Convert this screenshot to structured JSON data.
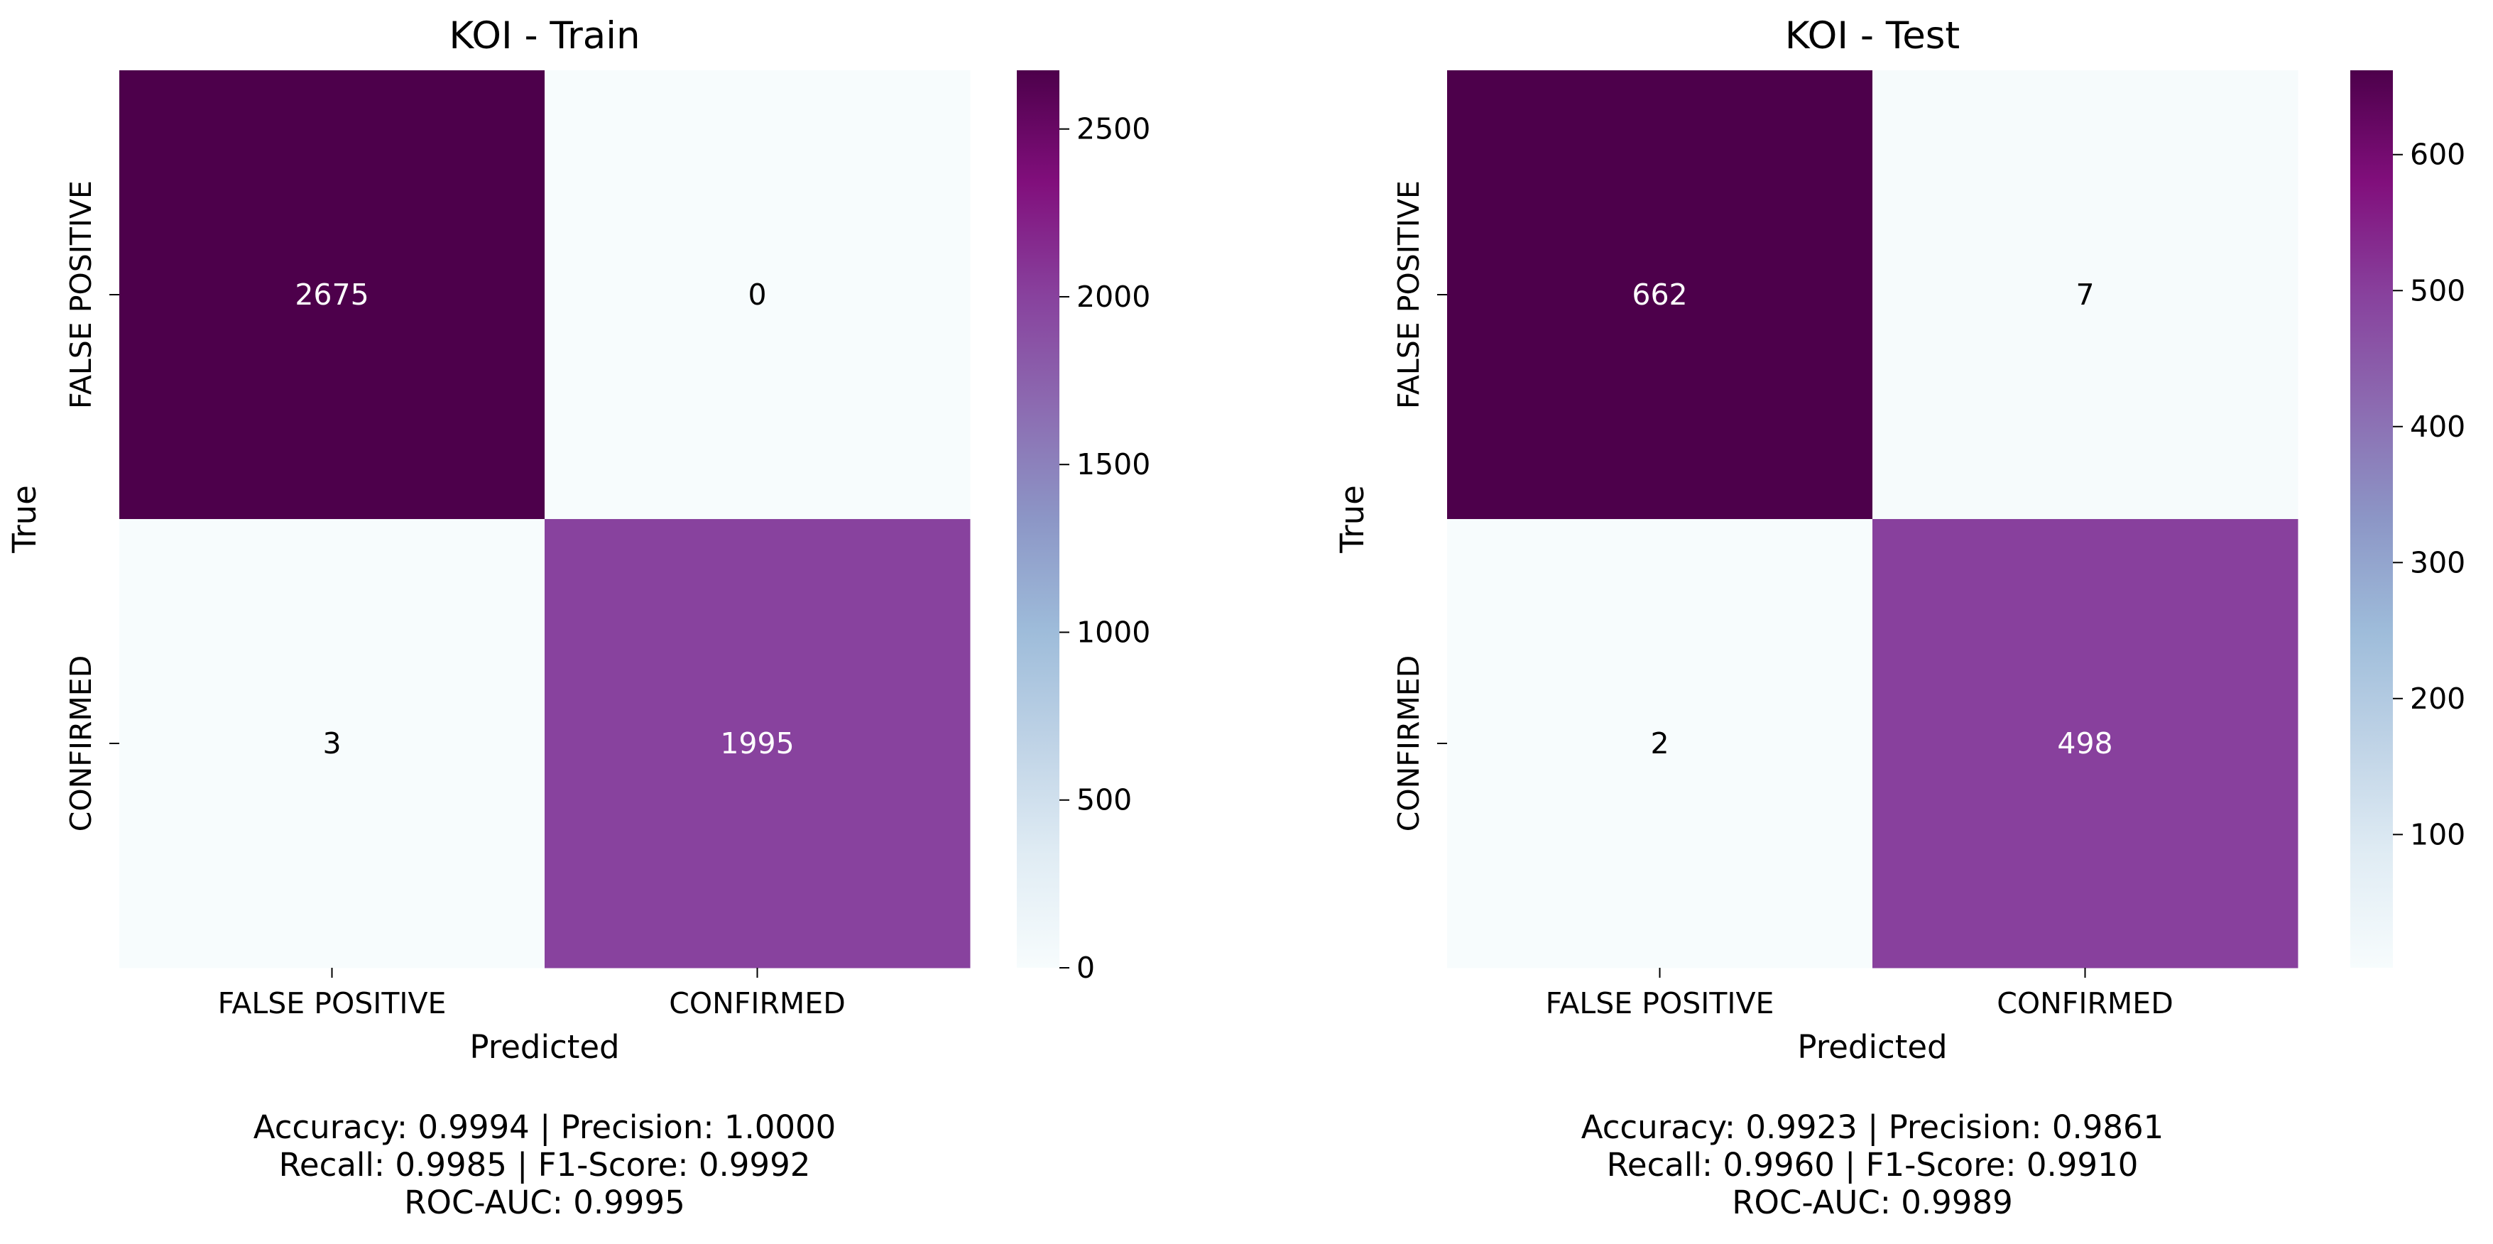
{
  "chart_data": [
    {
      "type": "heatmap",
      "title": "KOI - Train",
      "xlabel": "Predicted",
      "ylabel": "True",
      "x_categories": [
        "FALSE POSITIVE",
        "CONFIRMED"
      ],
      "y_categories": [
        "FALSE POSITIVE",
        "CONFIRMED"
      ],
      "matrix": [
        [
          2675,
          0
        ],
        [
          3,
          1995
        ]
      ],
      "colorbar": {
        "min": 0,
        "max": 2675,
        "ticks": [
          0,
          500,
          1000,
          1500,
          2000,
          2500
        ]
      },
      "colormap": "BuPu",
      "metrics": [
        "Accuracy: 0.9994 | Precision: 1.0000",
        "Recall: 0.9985 | F1-Score: 0.9992",
        "ROC-AUC: 0.9995"
      ]
    },
    {
      "type": "heatmap",
      "title": "KOI - Test",
      "xlabel": "Predicted",
      "ylabel": "True",
      "x_categories": [
        "FALSE POSITIVE",
        "CONFIRMED"
      ],
      "y_categories": [
        "FALSE POSITIVE",
        "CONFIRMED"
      ],
      "matrix": [
        [
          662,
          7
        ],
        [
          2,
          498
        ]
      ],
      "colorbar": {
        "min": 2,
        "max": 662,
        "ticks": [
          100,
          200,
          300,
          400,
          500,
          600
        ]
      },
      "colormap": "BuPu",
      "metrics": [
        "Accuracy: 0.9923 | Precision: 0.9861",
        "Recall: 0.9960 | F1-Score: 0.9910",
        "ROC-AUC: 0.9989"
      ]
    }
  ],
  "colors": {
    "cmap_stops": [
      "#f7fcfd",
      "#e0ecf4",
      "#bfd3e6",
      "#9ebcda",
      "#8c96c6",
      "#8c6bb1",
      "#88419d",
      "#810f7c",
      "#4d004b"
    ],
    "text_dark": "#000000",
    "text_light": "#ffffff"
  }
}
